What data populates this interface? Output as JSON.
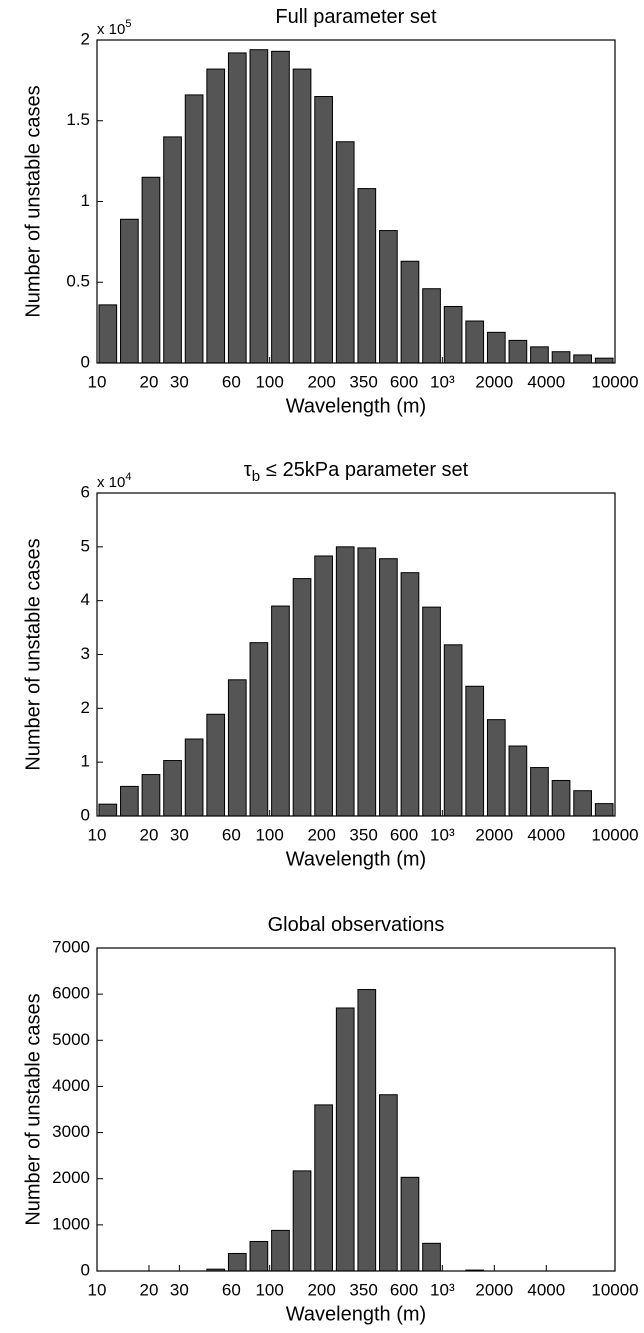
{
  "chart_data": [
    {
      "type": "histogram",
      "title": "Full parameter set",
      "xlabel": "Wavelength (m)",
      "ylabel": "Number of unstable cases",
      "multiplier": "x 10",
      "multiplier_exp": "5",
      "xscale": "log",
      "color": "#555555",
      "bins": [
        10,
        13.335,
        17.783,
        23.714,
        31.623,
        42.17,
        56.234,
        74.989,
        100,
        133.35,
        177.83,
        237.14,
        316.23,
        421.7,
        562.34,
        749.89,
        1000,
        1333.5,
        1778.3,
        2371.4,
        3162.3,
        4217,
        5623.4,
        7498.9,
        10000
      ],
      "values": [
        0.36,
        0.89,
        1.15,
        1.4,
        1.66,
        1.82,
        1.92,
        1.94,
        1.93,
        1.82,
        1.65,
        1.37,
        1.08,
        0.82,
        0.63,
        0.46,
        0.35,
        0.26,
        0.19,
        0.14,
        0.1,
        0.07,
        0.05,
        0.03
      ],
      "xlim": [
        10,
        10000
      ],
      "xticks": [
        10,
        20,
        30,
        60,
        100,
        200,
        350,
        600,
        {
          "value": 1000,
          "label": "10³"
        },
        2000,
        4000,
        10000
      ],
      "ylim": [
        0,
        2
      ],
      "yticks": [
        0,
        0.5,
        1,
        1.5,
        2
      ]
    },
    {
      "type": "histogram",
      "title": "τ",
      "title_subscript": "b",
      "title_suffix": "≤ 25kPa parameter set",
      "xlabel": "Wavelength (m)",
      "ylabel": "Number of unstable cases",
      "multiplier": "x 10",
      "multiplier_exp": "4",
      "xscale": "log",
      "color": "#555555",
      "bins": [
        10,
        13.335,
        17.783,
        23.714,
        31.623,
        42.17,
        56.234,
        74.989,
        100,
        133.35,
        177.83,
        237.14,
        316.23,
        421.7,
        562.34,
        749.89,
        1000,
        1333.5,
        1778.3,
        2371.4,
        3162.3,
        4217,
        5623.4,
        7498.9,
        10000
      ],
      "values": [
        0.22,
        0.55,
        0.77,
        1.03,
        1.43,
        1.89,
        2.53,
        3.22,
        3.9,
        4.41,
        4.83,
        5.0,
        4.98,
        4.78,
        4.52,
        3.88,
        3.18,
        2.41,
        1.79,
        1.3,
        0.9,
        0.66,
        0.47,
        0.23
      ],
      "xlim": [
        10,
        10000
      ],
      "xticks": [
        10,
        20,
        30,
        60,
        100,
        200,
        350,
        600,
        {
          "value": 1000,
          "label": "10³"
        },
        2000,
        4000,
        10000
      ],
      "ylim": [
        0,
        6
      ],
      "yticks": [
        0,
        1,
        2,
        3,
        4,
        5,
        6
      ]
    },
    {
      "type": "histogram",
      "title": "Global observations",
      "xlabel": "Wavelength (m)",
      "ylabel": "Number of unstable cases",
      "xscale": "log",
      "color": "#555555",
      "bins": [
        10,
        13.335,
        17.783,
        23.714,
        31.623,
        42.17,
        56.234,
        74.989,
        100,
        133.35,
        177.83,
        237.14,
        316.23,
        421.7,
        562.34,
        749.89,
        1000,
        1333.5,
        1778.3,
        2371.4,
        3162.3,
        4217,
        5623.4,
        7498.9,
        10000
      ],
      "values": [
        0,
        0,
        0,
        0,
        0,
        40,
        380,
        640,
        880,
        2170,
        3600,
        5700,
        6100,
        3820,
        2030,
        600,
        0,
        20,
        0,
        0,
        0,
        0,
        0,
        0
      ],
      "xlim": [
        10,
        10000
      ],
      "xticks": [
        10,
        20,
        30,
        60,
        100,
        200,
        350,
        600,
        {
          "value": 1000,
          "label": "10³"
        },
        2000,
        4000,
        10000
      ],
      "ylim": [
        0,
        7000
      ],
      "yticks": [
        0,
        1000,
        2000,
        3000,
        4000,
        5000,
        6000,
        7000
      ]
    }
  ]
}
